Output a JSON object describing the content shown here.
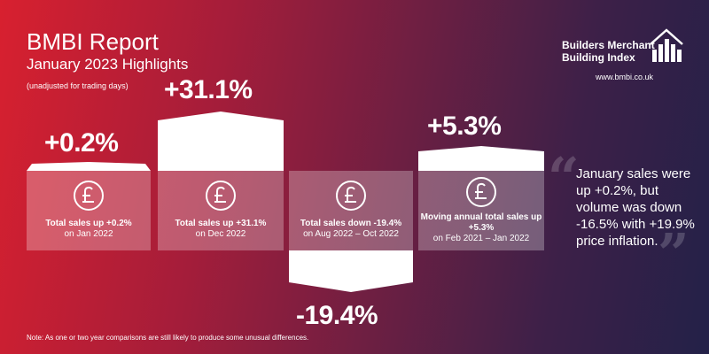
{
  "header": {
    "title": "BMBI Report",
    "subtitle": "January 2023 Highlights",
    "note": "(unadjusted for trading days)"
  },
  "brand": {
    "line1": "Builders Merchant",
    "line2": "Building Index",
    "url": "www.bmbi.co.uk",
    "logo_icon": "building-skyline-icon"
  },
  "stats": [
    {
      "value": "+0.2%",
      "label_bold": "Total sales up +0.2%",
      "label_plain": "on Jan 2022",
      "icon": "pound-sign-icon",
      "direction": "up"
    },
    {
      "value": "+31.1%",
      "label_bold": "Total sales up +31.1%",
      "label_plain": "on Dec 2022",
      "icon": "pound-sign-icon",
      "direction": "up"
    },
    {
      "value": "-19.4%",
      "label_bold": "Total sales down -19.4%",
      "label_plain": "on Aug 2022 – Oct 2022",
      "icon": "pound-sign-icon",
      "direction": "down"
    },
    {
      "value": "+5.3%",
      "label_bold": "Moving annual total sales up +5.3%",
      "label_plain": "on Feb 2021 – Jan 2022",
      "icon": "pound-sign-icon",
      "direction": "up"
    }
  ],
  "quote": {
    "text": "January sales were up +0.2%, but volume was down -16.5% with +19.9% price inflation.",
    "open_mark": "“",
    "close_mark": "”"
  },
  "footer": {
    "note": "Note: As one or two year comparisons are still likely to produce some unusual differences."
  },
  "colors": {
    "gradient_left": "#d8202f",
    "gradient_right": "#232148",
    "card_fill": "rgba(255,255,255,0.28)"
  }
}
